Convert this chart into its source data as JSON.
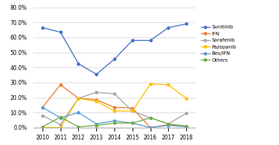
{
  "years": [
    2010,
    2011,
    2012,
    2013,
    2014,
    2015,
    2016,
    2017,
    2018
  ],
  "series": {
    "Sunitinib": [
      0.665,
      0.635,
      0.425,
      0.355,
      0.455,
      0.58,
      0.58,
      0.665,
      0.69
    ],
    "IFN": [
      0.135,
      0.285,
      0.195,
      0.185,
      0.135,
      0.13,
      0.0,
      0.02,
      0.01
    ],
    "Sorafenib": [
      0.08,
      0.02,
      0.195,
      0.235,
      0.225,
      0.11,
      0.065,
      0.025,
      0.095
    ],
    "Pazopanib": [
      0.0,
      0.0,
      0.195,
      0.175,
      0.11,
      0.11,
      0.29,
      0.285,
      0.195
    ],
    "Bev/IFN": [
      0.135,
      0.065,
      0.1,
      0.025,
      0.045,
      0.03,
      0.0,
      0.015,
      0.005
    ],
    "Others": [
      0.005,
      0.07,
      0.005,
      0.015,
      0.03,
      0.03,
      0.065,
      0.025,
      0.01
    ]
  },
  "colors": {
    "Sunitinib": "#4472c4",
    "IFN": "#ed7d31",
    "Sorafenib": "#a5a5a5",
    "Pazopanib": "#ffc000",
    "Bev/IFN": "#5b9bd5",
    "Others": "#70ad47"
  },
  "ylim": [
    0.0,
    0.82
  ],
  "yticks": [
    0.0,
    0.1,
    0.2,
    0.3,
    0.4,
    0.5,
    0.6,
    0.7,
    0.8
  ],
  "background_color": "#ffffff",
  "grid_color": "#d8d8d8"
}
